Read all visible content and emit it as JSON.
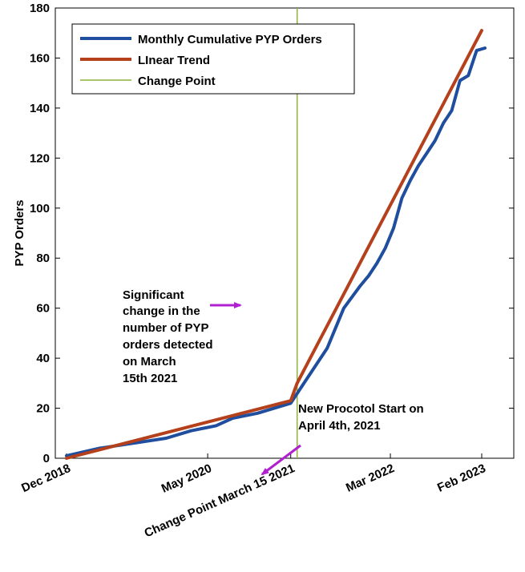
{
  "chart_data": {
    "type": "line",
    "title": "",
    "xlabel": "",
    "ylabel": "PYP Orders",
    "ylim": [
      0,
      180
    ],
    "xlim": [
      "2018-12",
      "2023-02"
    ],
    "grid": false,
    "legend_position": "top-left",
    "yticks": [
      0,
      20,
      40,
      60,
      80,
      100,
      120,
      140,
      160,
      180
    ],
    "xticks": [
      {
        "x": "2018-12",
        "label": "Dec 2018"
      },
      {
        "x": "2020-05",
        "label": "May 2020"
      },
      {
        "x": "2021-03",
        "label": "Change Point March 15 2021"
      },
      {
        "x": "2022-03",
        "label": "Mar 2022"
      },
      {
        "x": "2023-02",
        "label": "Feb 2023"
      }
    ],
    "series": [
      {
        "name": "Monthly Cumulative PYP Orders",
        "color": "#1f4e9e",
        "style": "solid",
        "points": [
          {
            "x": "2018-12",
            "y": 1
          },
          {
            "x": "2019-04",
            "y": 4
          },
          {
            "x": "2019-08",
            "y": 6
          },
          {
            "x": "2019-12",
            "y": 8
          },
          {
            "x": "2020-03",
            "y": 11
          },
          {
            "x": "2020-06",
            "y": 13
          },
          {
            "x": "2020-08",
            "y": 16
          },
          {
            "x": "2020-11",
            "y": 18
          },
          {
            "x": "2021-01",
            "y": 20
          },
          {
            "x": "2021-03",
            "y": 22
          },
          {
            "x": "2021-04",
            "y": 29
          },
          {
            "x": "2021-07",
            "y": 44
          },
          {
            "x": "2021-09",
            "y": 60
          },
          {
            "x": "2021-11",
            "y": 69
          },
          {
            "x": "2021-12",
            "y": 73
          },
          {
            "x": "2022-01",
            "y": 78
          },
          {
            "x": "2022-02",
            "y": 84
          },
          {
            "x": "2022-03",
            "y": 92
          },
          {
            "x": "2022-04",
            "y": 104
          },
          {
            "x": "2022-05",
            "y": 111
          },
          {
            "x": "2022-06",
            "y": 117
          },
          {
            "x": "2022-07",
            "y": 122
          },
          {
            "x": "2022-08",
            "y": 127
          },
          {
            "x": "2022-09",
            "y": 134
          },
          {
            "x": "2022-10",
            "y": 139
          },
          {
            "x": "2022-11",
            "y": 151
          },
          {
            "x": "2022-12",
            "y": 153
          },
          {
            "x": "2023-01",
            "y": 163
          },
          {
            "x": "2023-02",
            "y": 164
          }
        ]
      },
      {
        "name": "LInear Trend",
        "color": "#b5401c",
        "style": "solid",
        "points": [
          {
            "x": "2018-12",
            "y": 0
          },
          {
            "x": "2021-03",
            "y": 23
          },
          {
            "x": "2021-03",
            "y": 30
          },
          {
            "x": "2023-02",
            "y": 171
          }
        ]
      }
    ],
    "change_point": {
      "name": "Change Point",
      "x": "2021-03",
      "color": "#8db43c"
    },
    "annotations": [
      {
        "id": "significant-change",
        "lines": [
          "Significant",
          "change in the",
          "number of PYP",
          "orders detected",
          "on March",
          "15th 2021"
        ],
        "arrow_color": "#b020d0"
      },
      {
        "id": "new-protocol",
        "lines": [
          "New Procotol Start on",
          "April 4th, 2021"
        ],
        "arrow_color": "#b020d0"
      }
    ]
  }
}
